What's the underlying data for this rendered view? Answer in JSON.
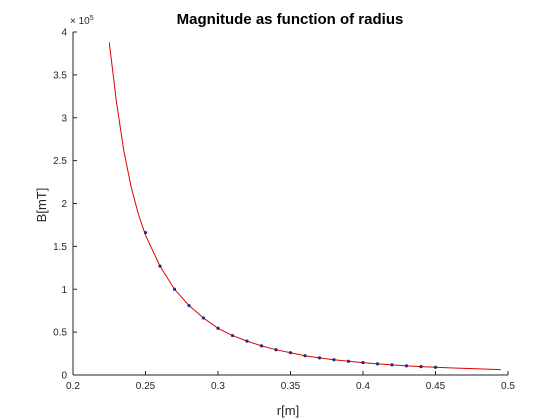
{
  "chart_data": {
    "type": "line",
    "title": "Magnitude as function of radius",
    "xlabel": "r[m]",
    "ylabel": "B[mT]",
    "y_exponent_label": "× 10",
    "y_exponent_power": "5",
    "xlim": [
      0.2,
      0.5
    ],
    "ylim": [
      0,
      4
    ],
    "y_scale_factor": 100000,
    "grid": false,
    "x_ticks": [
      0.2,
      0.25,
      0.3,
      0.35,
      0.4,
      0.45,
      0.5
    ],
    "x_tick_labels": [
      "0.2",
      "0.25",
      "0.3",
      "0.35",
      "0.4",
      "0.45",
      "0.5"
    ],
    "y_ticks": [
      0,
      0.5,
      1,
      1.5,
      2,
      2.5,
      3,
      3.5,
      4
    ],
    "y_tick_labels": [
      "0",
      "0.5",
      "1",
      "1.5",
      "2",
      "2.5",
      "3",
      "3.5",
      "4"
    ],
    "series": [
      {
        "kind": "line",
        "color": "#e00000",
        "x": [
          0.225,
          0.23,
          0.235,
          0.24,
          0.245,
          0.25,
          0.26,
          0.27,
          0.28,
          0.29,
          0.3,
          0.31,
          0.32,
          0.33,
          0.34,
          0.35,
          0.36,
          0.37,
          0.38,
          0.39,
          0.4,
          0.41,
          0.42,
          0.43,
          0.44,
          0.45,
          0.46,
          0.47,
          0.48,
          0.495
        ],
        "y": [
          3.88,
          3.18,
          2.62,
          2.2,
          1.88,
          1.63,
          1.27,
          1.0,
          0.81,
          0.665,
          0.545,
          0.46,
          0.395,
          0.34,
          0.295,
          0.26,
          0.225,
          0.2,
          0.178,
          0.16,
          0.145,
          0.13,
          0.118,
          0.107,
          0.098,
          0.09,
          0.083,
          0.077,
          0.071,
          0.063
        ]
      },
      {
        "kind": "points",
        "color": "#2a2a7a",
        "x": [
          0.25,
          0.26,
          0.27,
          0.28,
          0.29,
          0.3,
          0.31,
          0.32,
          0.33,
          0.34,
          0.35,
          0.36,
          0.37,
          0.38,
          0.39,
          0.4,
          0.41,
          0.42,
          0.43,
          0.44,
          0.45
        ],
        "y": [
          1.66,
          1.27,
          1.0,
          0.81,
          0.665,
          0.545,
          0.46,
          0.395,
          0.34,
          0.295,
          0.26,
          0.225,
          0.2,
          0.178,
          0.16,
          0.145,
          0.13,
          0.118,
          0.107,
          0.098,
          0.09
        ]
      }
    ]
  }
}
